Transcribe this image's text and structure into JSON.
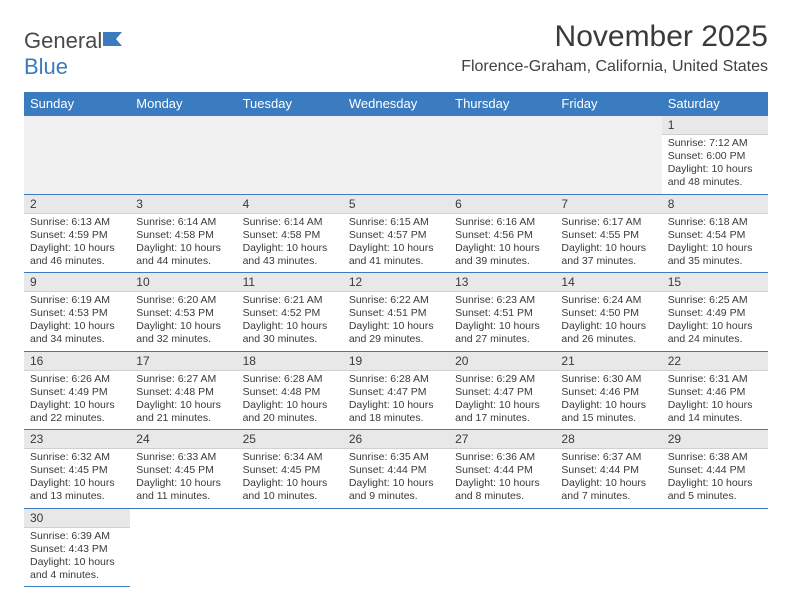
{
  "logo": {
    "text1": "General",
    "text2": "Blue"
  },
  "title": "November 2025",
  "location": "Florence-Graham, California, United States",
  "header_color": "#3b7bbf",
  "daynum_bg": "#e8e8e8",
  "border_color": "#3b7bbf",
  "days_of_week": [
    "Sunday",
    "Monday",
    "Tuesday",
    "Wednesday",
    "Thursday",
    "Friday",
    "Saturday"
  ],
  "weeks": [
    [
      null,
      null,
      null,
      null,
      null,
      null,
      {
        "n": "1",
        "sunrise": "7:12 AM",
        "sunset": "6:00 PM",
        "daylight": "10 hours and 48 minutes."
      }
    ],
    [
      {
        "n": "2",
        "sunrise": "6:13 AM",
        "sunset": "4:59 PM",
        "daylight": "10 hours and 46 minutes."
      },
      {
        "n": "3",
        "sunrise": "6:14 AM",
        "sunset": "4:58 PM",
        "daylight": "10 hours and 44 minutes."
      },
      {
        "n": "4",
        "sunrise": "6:14 AM",
        "sunset": "4:58 PM",
        "daylight": "10 hours and 43 minutes."
      },
      {
        "n": "5",
        "sunrise": "6:15 AM",
        "sunset": "4:57 PM",
        "daylight": "10 hours and 41 minutes."
      },
      {
        "n": "6",
        "sunrise": "6:16 AM",
        "sunset": "4:56 PM",
        "daylight": "10 hours and 39 minutes."
      },
      {
        "n": "7",
        "sunrise": "6:17 AM",
        "sunset": "4:55 PM",
        "daylight": "10 hours and 37 minutes."
      },
      {
        "n": "8",
        "sunrise": "6:18 AM",
        "sunset": "4:54 PM",
        "daylight": "10 hours and 35 minutes."
      }
    ],
    [
      {
        "n": "9",
        "sunrise": "6:19 AM",
        "sunset": "4:53 PM",
        "daylight": "10 hours and 34 minutes."
      },
      {
        "n": "10",
        "sunrise": "6:20 AM",
        "sunset": "4:53 PM",
        "daylight": "10 hours and 32 minutes."
      },
      {
        "n": "11",
        "sunrise": "6:21 AM",
        "sunset": "4:52 PM",
        "daylight": "10 hours and 30 minutes."
      },
      {
        "n": "12",
        "sunrise": "6:22 AM",
        "sunset": "4:51 PM",
        "daylight": "10 hours and 29 minutes."
      },
      {
        "n": "13",
        "sunrise": "6:23 AM",
        "sunset": "4:51 PM",
        "daylight": "10 hours and 27 minutes."
      },
      {
        "n": "14",
        "sunrise": "6:24 AM",
        "sunset": "4:50 PM",
        "daylight": "10 hours and 26 minutes."
      },
      {
        "n": "15",
        "sunrise": "6:25 AM",
        "sunset": "4:49 PM",
        "daylight": "10 hours and 24 minutes."
      }
    ],
    [
      {
        "n": "16",
        "sunrise": "6:26 AM",
        "sunset": "4:49 PM",
        "daylight": "10 hours and 22 minutes."
      },
      {
        "n": "17",
        "sunrise": "6:27 AM",
        "sunset": "4:48 PM",
        "daylight": "10 hours and 21 minutes."
      },
      {
        "n": "18",
        "sunrise": "6:28 AM",
        "sunset": "4:48 PM",
        "daylight": "10 hours and 20 minutes."
      },
      {
        "n": "19",
        "sunrise": "6:28 AM",
        "sunset": "4:47 PM",
        "daylight": "10 hours and 18 minutes."
      },
      {
        "n": "20",
        "sunrise": "6:29 AM",
        "sunset": "4:47 PM",
        "daylight": "10 hours and 17 minutes."
      },
      {
        "n": "21",
        "sunrise": "6:30 AM",
        "sunset": "4:46 PM",
        "daylight": "10 hours and 15 minutes."
      },
      {
        "n": "22",
        "sunrise": "6:31 AM",
        "sunset": "4:46 PM",
        "daylight": "10 hours and 14 minutes."
      }
    ],
    [
      {
        "n": "23",
        "sunrise": "6:32 AM",
        "sunset": "4:45 PM",
        "daylight": "10 hours and 13 minutes."
      },
      {
        "n": "24",
        "sunrise": "6:33 AM",
        "sunset": "4:45 PM",
        "daylight": "10 hours and 11 minutes."
      },
      {
        "n": "25",
        "sunrise": "6:34 AM",
        "sunset": "4:45 PM",
        "daylight": "10 hours and 10 minutes."
      },
      {
        "n": "26",
        "sunrise": "6:35 AM",
        "sunset": "4:44 PM",
        "daylight": "10 hours and 9 minutes."
      },
      {
        "n": "27",
        "sunrise": "6:36 AM",
        "sunset": "4:44 PM",
        "daylight": "10 hours and 8 minutes."
      },
      {
        "n": "28",
        "sunrise": "6:37 AM",
        "sunset": "4:44 PM",
        "daylight": "10 hours and 7 minutes."
      },
      {
        "n": "29",
        "sunrise": "6:38 AM",
        "sunset": "4:44 PM",
        "daylight": "10 hours and 5 minutes."
      }
    ],
    [
      {
        "n": "30",
        "sunrise": "6:39 AM",
        "sunset": "4:43 PM",
        "daylight": "10 hours and 4 minutes."
      },
      null,
      null,
      null,
      null,
      null,
      null
    ]
  ],
  "labels": {
    "sunrise": "Sunrise:",
    "sunset": "Sunset:",
    "daylight": "Daylight:"
  }
}
